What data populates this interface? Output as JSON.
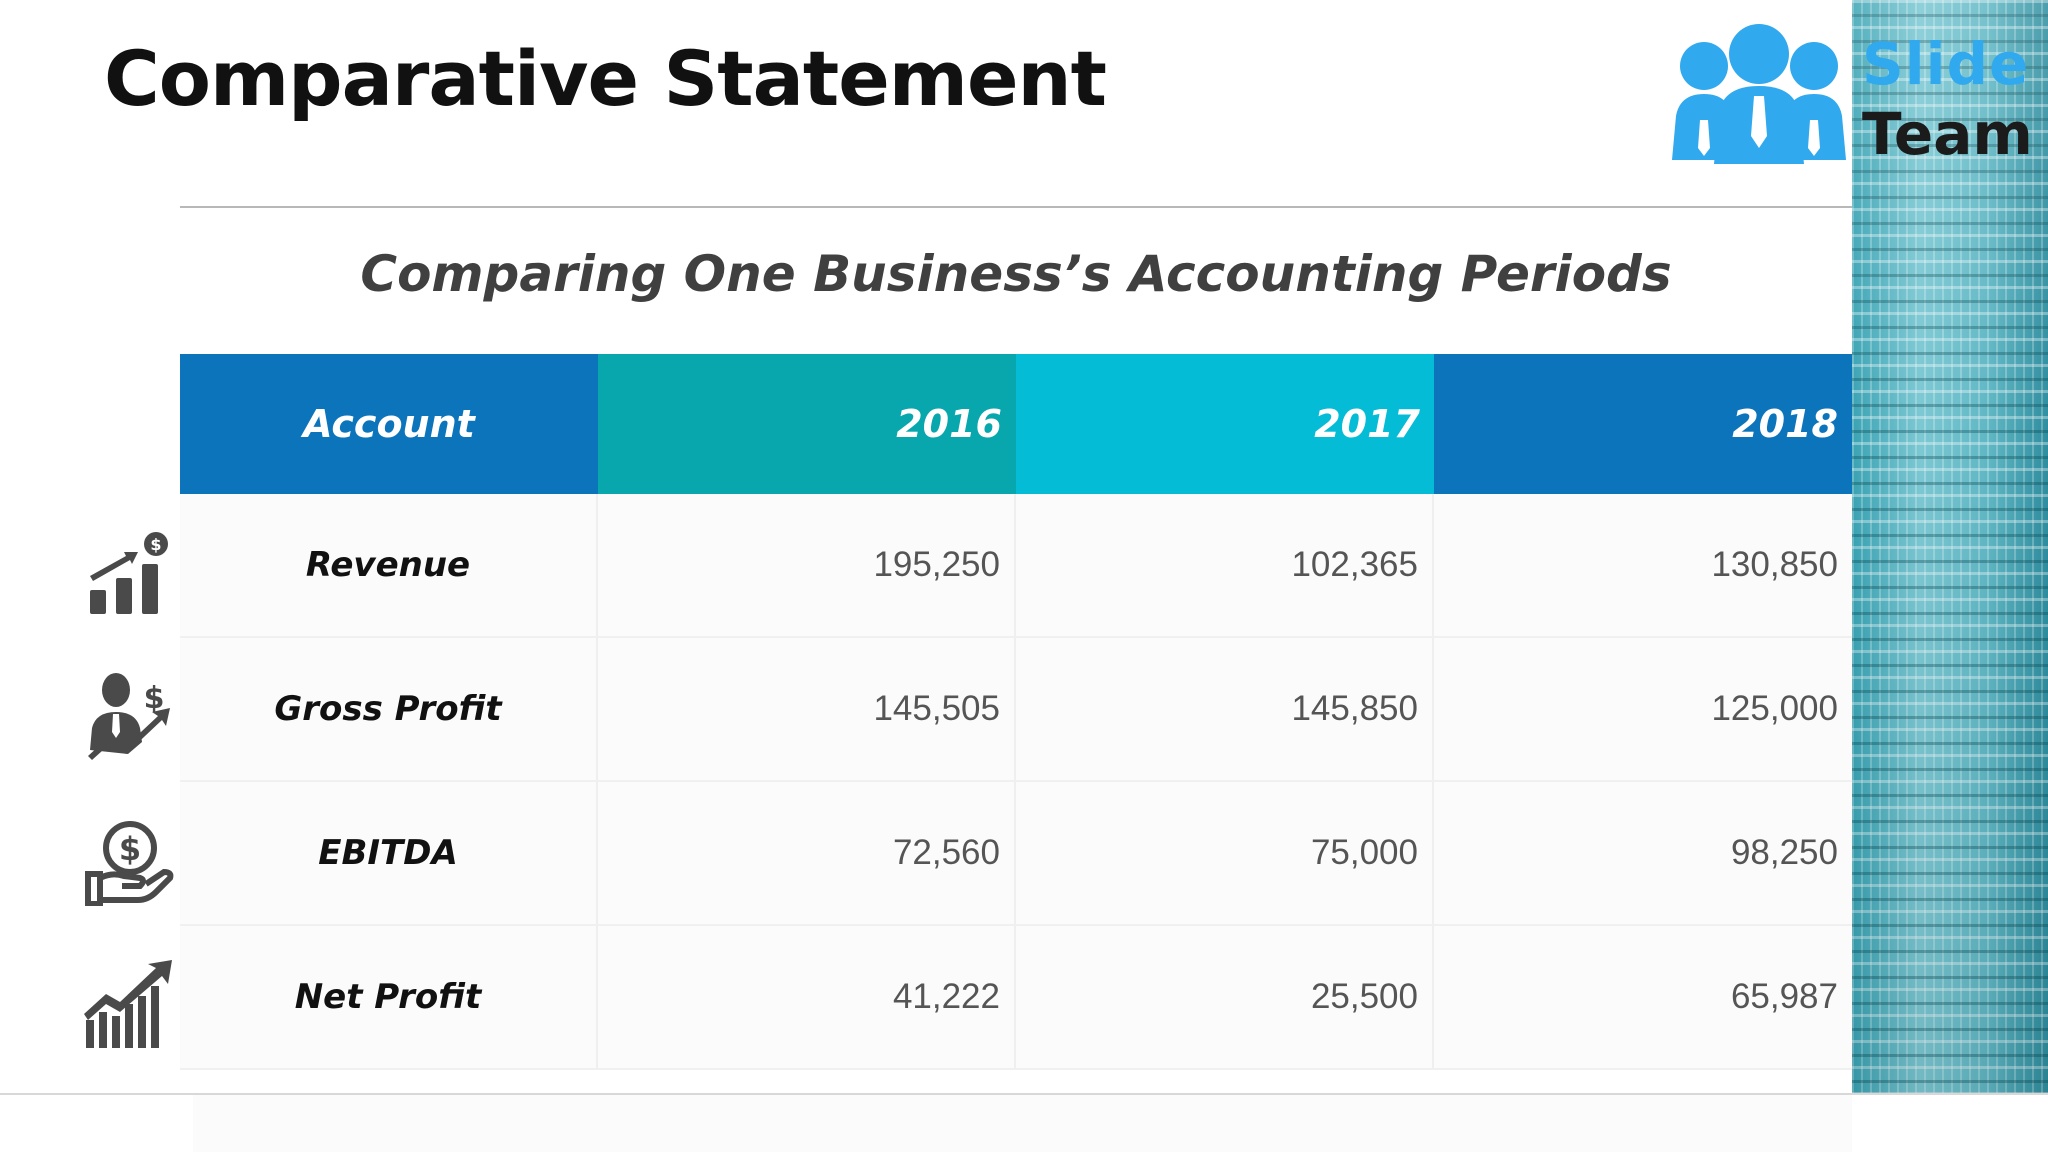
{
  "slide": {
    "title": "Comparative Statement",
    "subtitle": "Comparing One Business’s Accounting Periods"
  },
  "logo": {
    "word1": "Slide",
    "word2": "Team",
    "icon": "people-group-icon"
  },
  "table": {
    "headers": [
      {
        "label": "Account",
        "color": "#0b74bb"
      },
      {
        "label": "2016",
        "color": "#07a7ad"
      },
      {
        "label": "2017",
        "color": "#05bcd6"
      },
      {
        "label": "2018",
        "color": "#0b74bb"
      }
    ],
    "rows": [
      {
        "label": "Revenue",
        "icon": "bar-growth-dollar-icon",
        "values": [
          "195,250",
          "102,365",
          "130,850"
        ]
      },
      {
        "label": "Gross Profit",
        "icon": "businessman-profit-icon",
        "values": [
          "145,505",
          "145,850",
          "125,000"
        ]
      },
      {
        "label": "EBITDA",
        "icon": "hand-coin-icon",
        "values": [
          "72,560",
          "75,000",
          "98,250"
        ]
      },
      {
        "label": "Net Profit",
        "icon": "growth-chart-icon",
        "values": [
          "41,222",
          "25,500",
          "65,987"
        ]
      }
    ]
  },
  "colors": {
    "icon_gray": "#4a4a4a",
    "logo_blue": "#31a9ee"
  }
}
